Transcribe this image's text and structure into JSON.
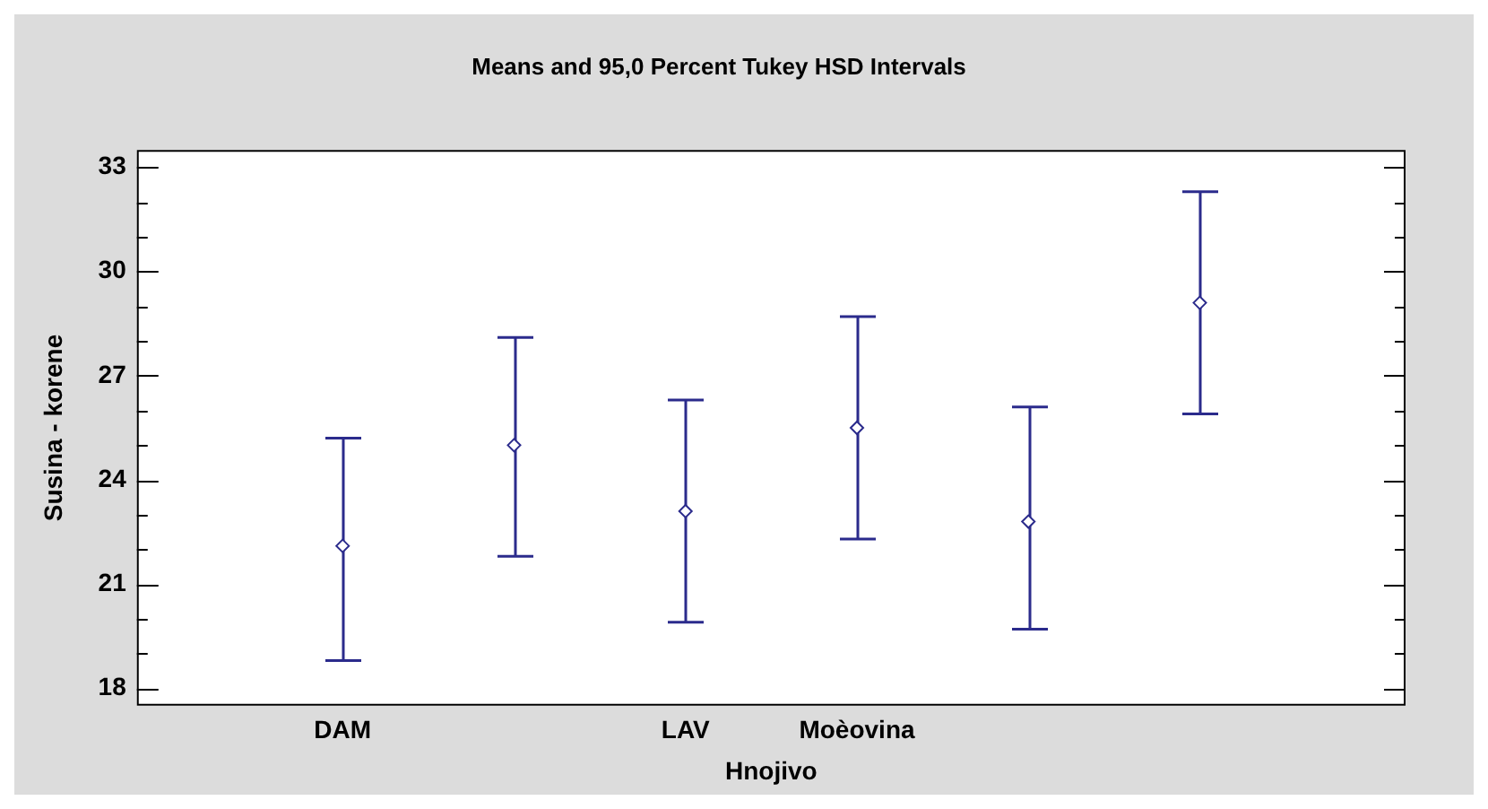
{
  "chart_data": {
    "type": "scatter",
    "title": "Means and 95,0 Percent Tukey HSD Intervals",
    "xlabel": "Hnojivo",
    "ylabel": "Susina - korene",
    "categories": [
      "DAM",
      null,
      "LAV",
      "Moèovina",
      null,
      null
    ],
    "series": [
      {
        "color": "#2b2b8c",
        "values": [
          22.1,
          25.0,
          23.1,
          25.5,
          22.8,
          29.1
        ],
        "errors": [
          [
            18.8,
            25.2
          ],
          [
            21.8,
            28.1
          ],
          [
            19.9,
            26.3
          ],
          [
            22.3,
            28.7
          ],
          [
            19.7,
            26.1
          ],
          [
            25.9,
            32.3
          ]
        ]
      }
    ],
    "ylim": [
      17.5,
      33.5
    ],
    "yticks": [
      18,
      {
        "value": 19,
        "label": null
      },
      {
        "value": 20,
        "label": null
      },
      21,
      {
        "value": 22,
        "label": null
      },
      {
        "value": 23,
        "label": null
      },
      24,
      {
        "value": 25,
        "label": null
      },
      {
        "value": 26,
        "label": null
      },
      27,
      {
        "value": 28,
        "label": null
      },
      {
        "value": 29,
        "label": null
      },
      30,
      {
        "value": 31,
        "label": null
      },
      {
        "value": 32,
        "label": null
      },
      33
    ],
    "grid": false,
    "legend": false,
    "marker": "diamond"
  }
}
